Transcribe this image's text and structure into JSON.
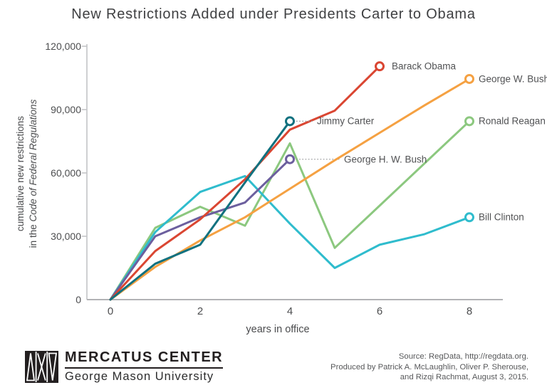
{
  "chart_data": {
    "type": "line",
    "title": "New Restrictions Added under Presidents Carter to Obama",
    "xlabel": "years in office",
    "ylabel_line1": "cumulative new restrictions",
    "ylabel_line2_prefix": "in the ",
    "ylabel_line2_italic": "Code of Federal Regulations",
    "xlim": [
      0,
      8
    ],
    "ylim": [
      0,
      120000
    ],
    "grid": false,
    "legend_position": "end-of-line labels",
    "x_ticks": [
      {
        "v": 0,
        "label": "0"
      },
      {
        "v": 2,
        "label": "2"
      },
      {
        "v": 4,
        "label": "4"
      },
      {
        "v": 6,
        "label": "6"
      },
      {
        "v": 8,
        "label": "8"
      }
    ],
    "y_ticks": [
      {
        "v": 0,
        "label": "0"
      },
      {
        "v": 30000,
        "label": "30,000"
      },
      {
        "v": 60000,
        "label": "60,000"
      },
      {
        "v": 90000,
        "label": "90,000"
      },
      {
        "v": 120000,
        "label": "120,000"
      }
    ],
    "series": [
      {
        "name": "Ronald Reagan",
        "color": "#8cc87f",
        "x": [
          0,
          1,
          2,
          3,
          4,
          5,
          6,
          7,
          8
        ],
        "values": [
          0,
          34000,
          44000,
          35000,
          74000,
          24500,
          44500,
          64500,
          84500
        ],
        "leader": false,
        "label_dx": 13
      },
      {
        "name": "Bill Clinton",
        "color": "#2fbccd",
        "x": [
          0,
          1,
          2,
          3,
          4,
          5,
          6,
          7,
          8
        ],
        "values": [
          0,
          32000,
          51000,
          58500,
          36000,
          15000,
          26000,
          31000,
          39000
        ],
        "leader": false,
        "label_dx": 13
      },
      {
        "name": "George H. W. Bush",
        "color": "#6c5f9e",
        "x": [
          0,
          1,
          2,
          3,
          4
        ],
        "values": [
          0,
          30000,
          39000,
          46000,
          66500
        ],
        "leader": true,
        "label_dx": 76
      },
      {
        "name": "George W. Bush",
        "color": "#f5a142",
        "x": [
          0,
          1,
          2,
          3,
          4,
          5,
          6,
          7,
          8
        ],
        "values": [
          0,
          15500,
          28000,
          39000,
          52500,
          66000,
          79000,
          92000,
          104500
        ],
        "leader": false,
        "label_dx": 13
      },
      {
        "name": "Barack Obama",
        "color": "#da4632",
        "x": [
          0,
          1,
          2,
          3,
          4,
          5,
          6
        ],
        "values": [
          0,
          23000,
          38000,
          57000,
          80500,
          89500,
          110500
        ],
        "leader": false,
        "label_dx": 17
      },
      {
        "name": "Jimmy Carter",
        "color": "#11717f",
        "x": [
          0,
          1,
          2,
          3,
          4
        ],
        "values": [
          0,
          17000,
          26000,
          55500,
          84500
        ],
        "leader": true,
        "label_dx": 38
      }
    ]
  },
  "footer": {
    "logo_line1": "MERCATUS CENTER",
    "logo_line2": "George Mason University",
    "source_line1": "Source: RegData, http://regdata.org.",
    "source_line2": "Produced by Patrick A. McLaughlin, Oliver P. Sherouse,",
    "source_line3": "and Rizqi Rachmat, August 3, 2015."
  }
}
